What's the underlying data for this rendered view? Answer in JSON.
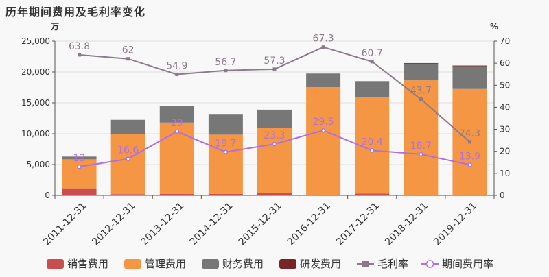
{
  "chart_data": {
    "type": "bar",
    "title": "历年期间费用及毛利率变化",
    "left_unit": "万",
    "right_unit": "%",
    "categories": [
      "2011-12-31",
      "2012-12-31",
      "2013-12-31",
      "2014-12-31",
      "2015-12-31",
      "2016-12-31",
      "2017-12-31",
      "2018-12-31",
      "2019-12-31"
    ],
    "left_axis": {
      "min": 0,
      "max": 25000,
      "ticks": [
        "0",
        "5,000",
        "10,000",
        "15,000",
        "20,000",
        "25,000"
      ]
    },
    "right_axis": {
      "min": 0,
      "max": 70,
      "ticks": [
        "0",
        "10",
        "20",
        "30",
        "40",
        "50",
        "60",
        "70"
      ]
    },
    "stacked_series": [
      {
        "name": "销售费用",
        "color": "#c94f4f",
        "values": [
          1150,
          200,
          250,
          250,
          350,
          100,
          300,
          100,
          100
        ]
      },
      {
        "name": "管理费用",
        "color": "#f59644",
        "values": [
          4700,
          9800,
          11550,
          9600,
          10550,
          17450,
          15700,
          18550,
          17150
        ]
      },
      {
        "name": "财务费用",
        "color": "#777777",
        "values": [
          450,
          2250,
          2700,
          3350,
          3000,
          2200,
          2400,
          2700,
          3700
        ]
      },
      {
        "name": "研发费用",
        "color": "#7a2525",
        "values": [
          0,
          0,
          0,
          0,
          0,
          0,
          100,
          100,
          100
        ]
      }
    ],
    "line_series": [
      {
        "name": "毛利率",
        "color": "#8c7a8c",
        "marker": "square",
        "values": [
          63.8,
          62,
          54.9,
          56.7,
          57.3,
          67.3,
          60.7,
          43.7,
          24.3
        ],
        "labels": [
          "63.8",
          "62",
          "54.9",
          "56.7",
          "57.3",
          "67.3",
          "60.7",
          "43.7",
          "24.3"
        ]
      },
      {
        "name": "期间费用率",
        "color": "#b06fe0",
        "marker": "circle",
        "values": [
          13,
          16.6,
          29,
          19.7,
          23.3,
          29.5,
          20.4,
          18.7,
          13.9
        ],
        "labels": [
          "13",
          "16.6",
          "29",
          "19.7",
          "23.3",
          "29.5",
          "20.4",
          "18.7",
          "13.9"
        ]
      }
    ],
    "legend_position": "bottom",
    "grid": true
  }
}
